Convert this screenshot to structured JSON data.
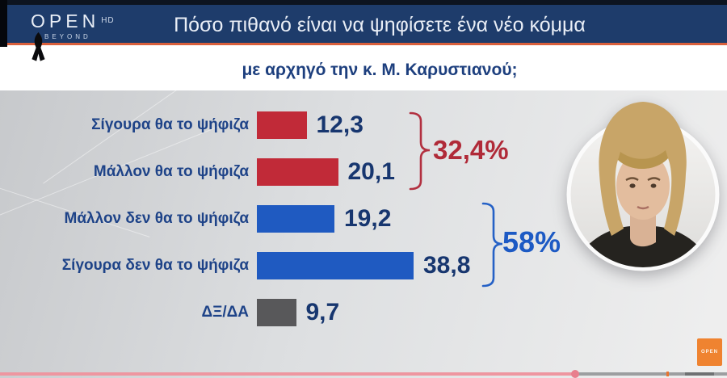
{
  "header": {
    "logo": {
      "main": "OPEN",
      "hd": "HD",
      "sub": "BEYOND"
    },
    "title": "Πόσο πιθανό είναι να ψηφίσετε ένα νέο κόμμα",
    "ribbon_icon": "black-mourning-ribbon"
  },
  "subtitle": "με αρχηγό την κ. Μ. Καρυστιανού;",
  "chart_data": {
    "type": "bar",
    "orientation": "horizontal",
    "title": "Πόσο πιθανό είναι να ψηφίσετε ένα νέο κόμμα",
    "subtitle": "με αρχηγό την κ. Μ. Καρυστιανού;",
    "categories": [
      "Σίγουρα θα το ψήφιζα",
      "Μάλλον θα το ψήφιζα",
      "Μάλλον δεν θα το ψήφιζα",
      "Σίγουρα δεν θα το ψήφιζα",
      "ΔΞ/ΔΑ"
    ],
    "values": [
      12.3,
      20.1,
      19.2,
      38.8,
      9.7
    ],
    "value_labels": [
      "12,3",
      "20,1",
      "19,2",
      "38,8",
      "9,7"
    ],
    "bar_colors": [
      "#c12a38",
      "#c12a38",
      "#1f5ac1",
      "#1f5ac1",
      "#58585a"
    ],
    "xlim": [
      0,
      45
    ],
    "grid": false,
    "legend": false,
    "groups": [
      {
        "label": "32,4%",
        "rows": [
          0,
          1
        ],
        "color": "#b02a38"
      },
      {
        "label": "58%",
        "rows": [
          2,
          3
        ],
        "color": "#1d5ac4"
      }
    ]
  },
  "portrait": {
    "subject": "Μ. Καρυστιανού"
  },
  "player": {
    "watermark": "OPEN",
    "progress_percent": 79
  },
  "colors": {
    "header_bg": "#1e3c6b",
    "header_accent_line": "#d9603c",
    "title_text": "#e9eef6",
    "subtitle_text": "#1d3f7e",
    "label_text": "#1e4388",
    "value_text": "#17366f",
    "bar_red": "#c12a38",
    "bar_blue": "#1f5ac1",
    "bar_gray": "#58585a",
    "panel_bg": "#d9dbdd",
    "watermark_bg": "#ef8330",
    "progress_fill": "#ee96a0"
  }
}
